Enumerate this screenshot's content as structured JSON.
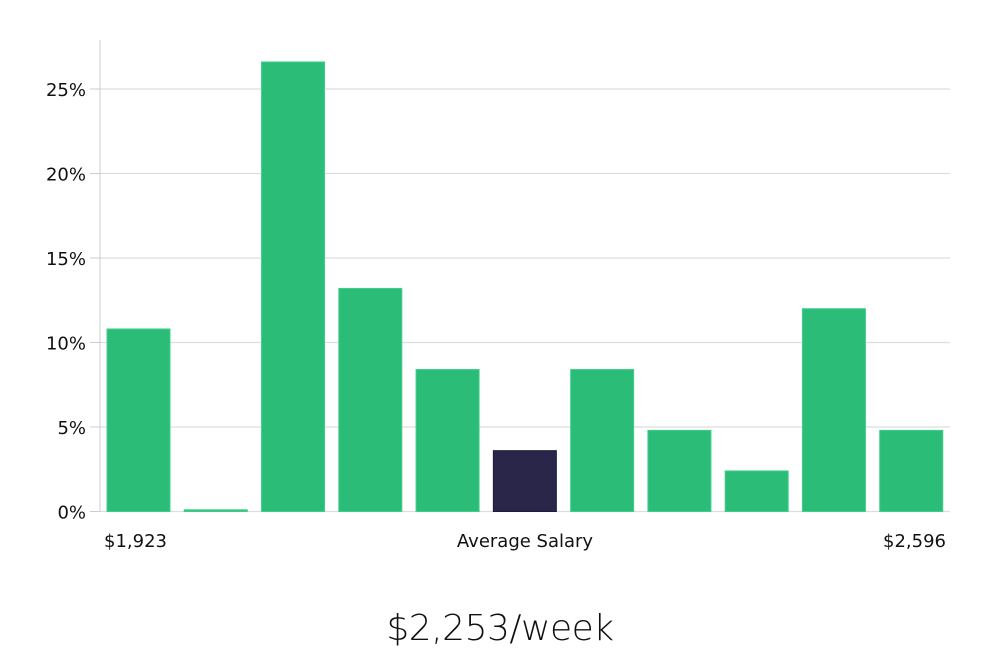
{
  "chart_data": {
    "type": "bar",
    "title": "",
    "xlabel": "Average Salary",
    "ylabel": "",
    "categories": [
      "bin1",
      "bin2",
      "bin3",
      "bin4",
      "bin5",
      "bin6",
      "bin7",
      "bin8",
      "bin9",
      "bin10",
      "bin11"
    ],
    "values": [
      10.8,
      0.1,
      26.6,
      13.2,
      8.4,
      3.6,
      8.4,
      4.8,
      2.4,
      12.0,
      4.8
    ],
    "highlight_index": 5,
    "ylim": [
      0,
      28
    ],
    "yticks": [
      0,
      5,
      10,
      15,
      20,
      25
    ],
    "ytick_labels": [
      "0%",
      "5%",
      "10%",
      "15%",
      "20%",
      "25%"
    ],
    "x_min_label": "$1,923",
    "x_max_label": "$2,596",
    "grid": true,
    "legend": "none",
    "colors": {
      "bar": "#2bbd78",
      "highlight": "#29264a",
      "grid": "#dddddd",
      "axis": "#cccccc"
    }
  },
  "caption": "$2,253/week"
}
